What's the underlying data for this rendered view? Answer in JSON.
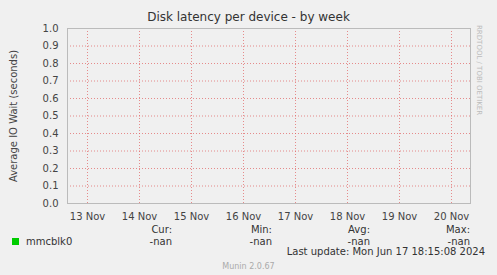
{
  "chart_data": {
    "type": "line",
    "title": "Disk latency per device - by week",
    "y_label": "Average IO Wait (seconds)",
    "x": [
      "13 Nov",
      "14 Nov",
      "15 Nov",
      "16 Nov",
      "17 Nov",
      "18 Nov",
      "19 Nov",
      "20 Nov"
    ],
    "series": [
      {
        "name": "mmcblk0",
        "color": "#00cc00",
        "values": [
          null,
          null,
          null,
          null,
          null,
          null,
          null,
          null
        ],
        "stats": [
          {
            "label": "Cur:",
            "value": "-nan"
          },
          {
            "label": "Min:",
            "value": "-nan"
          },
          {
            "label": "Avg:",
            "value": "-nan"
          },
          {
            "label": "Max:",
            "value": "-nan"
          }
        ]
      }
    ],
    "ylim": [
      0,
      1
    ],
    "yticks": [
      {
        "value": 0,
        "label": "0.0"
      },
      0.1,
      0.2,
      0.3,
      0.4,
      0.5,
      0.6,
      0.7,
      0.8,
      0.9,
      {
        "value": 1,
        "label": "1.0"
      }
    ],
    "grid": true,
    "legend": "bottom-left",
    "last_update": "Last update: Mon Jun 17 18:15:08 2024",
    "footer": "Munin 2.0.67",
    "side_text": "RRDTOOL / TOBI OETIKER"
  }
}
